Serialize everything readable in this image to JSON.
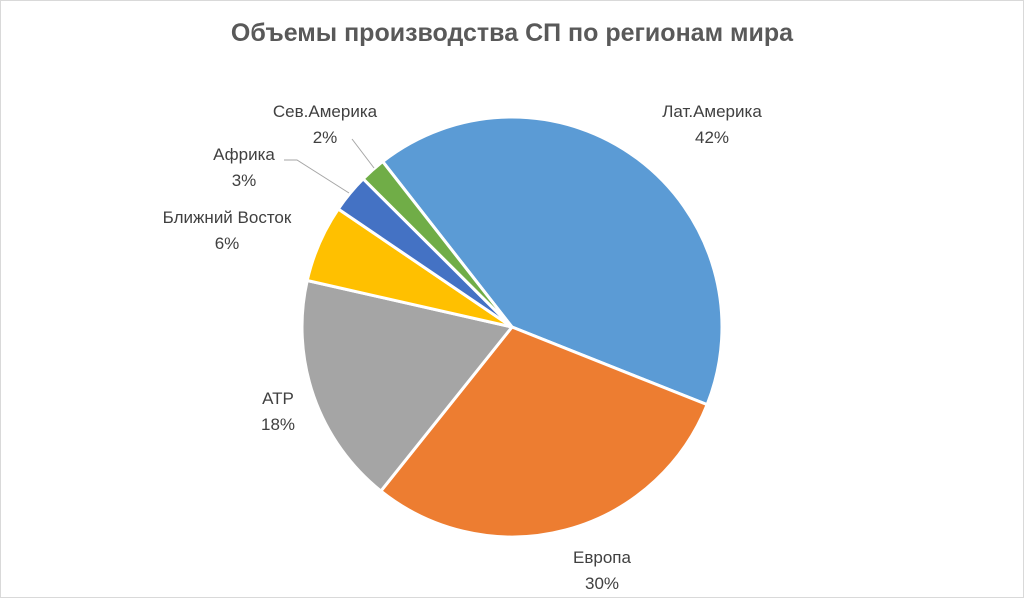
{
  "chart_data": {
    "type": "pie",
    "title": "Объемы производства СП по регионам мира",
    "slices": [
      {
        "label": "Лат.Америка",
        "value": 42,
        "value_label": "42%",
        "color": "#5b9bd5"
      },
      {
        "label": "Европа",
        "value": 30,
        "value_label": "30%",
        "color": "#ed7d31"
      },
      {
        "label": "АТР",
        "value": 18,
        "value_label": "18%",
        "color": "#a5a5a5"
      },
      {
        "label": "Ближний Восток",
        "value": 6,
        "value_label": "6%",
        "color": "#ffc000"
      },
      {
        "label": "Африка",
        "value": 3,
        "value_label": "3%",
        "color": "#4472c4"
      },
      {
        "label": "Сев.Америка",
        "value": 2,
        "value_label": "2%",
        "color": "#70ad47"
      }
    ],
    "legend": "none",
    "start": "top-right, clockwise"
  }
}
